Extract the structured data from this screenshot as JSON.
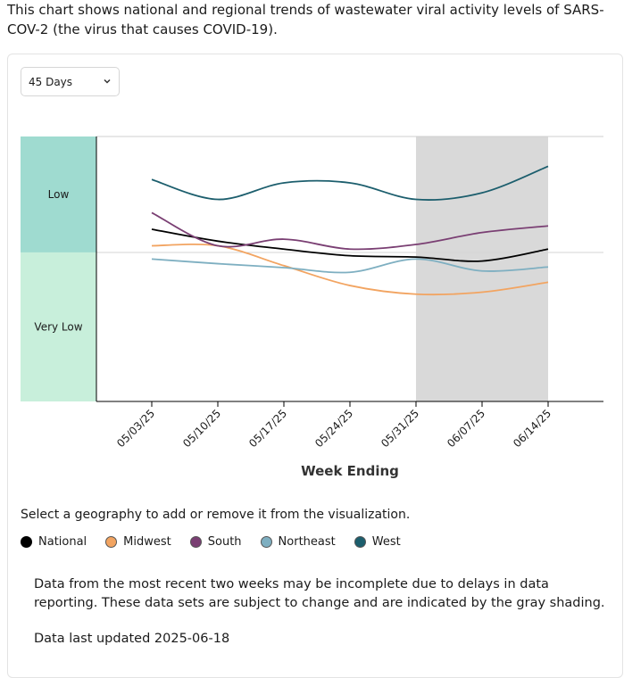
{
  "intro": "This chart shows national and regional trends of wastewater viral activity levels of SARS-COV-2 (the virus that causes COVID-19).",
  "dropdown": {
    "selected": "45 Days",
    "icon": "chevron-down-icon"
  },
  "instruction": "Select a geography to add or remove it from the visualization.",
  "legend": [
    {
      "label": "National",
      "color": "#000000"
    },
    {
      "label": "Midwest",
      "color": "#f2a461"
    },
    {
      "label": "South",
      "color": "#7a3f73"
    },
    {
      "label": "Northeast",
      "color": "#7eafc1"
    },
    {
      "label": "West",
      "color": "#1c5e6d"
    }
  ],
  "note": "Data from the most recent two weeks may be incomplete due to delays in data reporting. These data sets are subject to change and are indicated by the gray shading.",
  "updated": "Data last updated 2025-06-18",
  "chart_data": {
    "type": "line",
    "xlabel": "Week Ending",
    "ylabel": "",
    "x": [
      "05/03/25",
      "05/10/25",
      "05/17/25",
      "05/24/25",
      "05/31/25",
      "06/07/25",
      "06/14/25"
    ],
    "ylim": [
      0,
      4
    ],
    "bands": [
      {
        "label": "Very Low",
        "from": 0,
        "to": 2.25,
        "color": "#c8efdb"
      },
      {
        "label": "Low",
        "from": 2.25,
        "to": 4,
        "color": "#9fdbd0"
      }
    ],
    "incomplete_shading": {
      "from": "05/31/25",
      "to": "06/14/25",
      "color": "#d9d9d9"
    },
    "series": [
      {
        "name": "National",
        "color": "#000000",
        "values": [
          2.6,
          2.42,
          2.3,
          2.2,
          2.18,
          2.12,
          2.3
        ]
      },
      {
        "name": "Midwest",
        "color": "#f2a461",
        "values": [
          2.35,
          2.35,
          2.05,
          1.75,
          1.62,
          1.65,
          1.8
        ]
      },
      {
        "name": "South",
        "color": "#7a3f73",
        "values": [
          2.85,
          2.35,
          2.45,
          2.3,
          2.37,
          2.55,
          2.65
        ]
      },
      {
        "name": "Northeast",
        "color": "#7eafc1",
        "values": [
          2.15,
          2.08,
          2.02,
          1.95,
          2.15,
          1.97,
          2.03
        ]
      },
      {
        "name": "West",
        "color": "#1c5e6d",
        "values": [
          3.35,
          3.05,
          3.3,
          3.3,
          3.05,
          3.15,
          3.55
        ]
      }
    ]
  }
}
